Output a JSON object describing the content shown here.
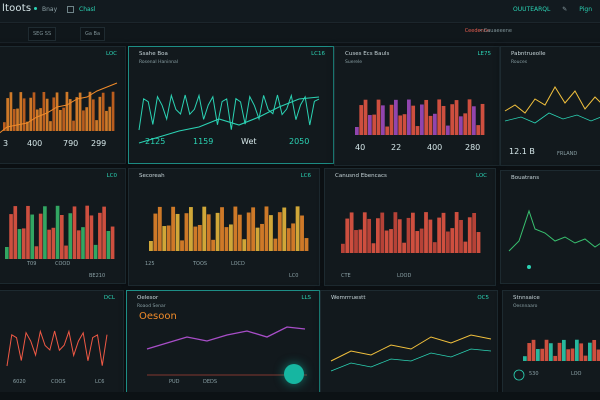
{
  "header": {
    "brand": "ltoots",
    "nav": [
      "Bnay",
      "Chasl"
    ],
    "right": [
      "OUUTEARQL",
      "Pign"
    ]
  },
  "subbar": {
    "chip1": "SEG  SS",
    "chip2": "Ga  Ba",
    "red": "Ceedenne",
    "right": "• Cauaeeene"
  },
  "panels": [
    {
      "title": "",
      "sub": "",
      "tag": "LOC",
      "metrics": [
        "3",
        "400",
        "790",
        "299"
      ]
    },
    {
      "title": "Ssahe Boa",
      "sub": "Rosenal Haninnal",
      "tag": "LC16",
      "metrics": [
        "2125",
        "1159",
        "Wet",
        "2050"
      ]
    },
    {
      "title": "Cuses Ecs Bauls",
      "sub": "Suerele",
      "tag": "LE75",
      "metrics": [
        "40",
        "22",
        "400",
        "280"
      ]
    },
    {
      "title": "Pabntrueolle",
      "sub": "Rouces",
      "tag": "",
      "metrics": [
        "12.1 B",
        "FRLAND"
      ]
    },
    {
      "title": "",
      "sub": "",
      "tag": "LC0",
      "metrics": [
        "T09",
        "COOD",
        "BE210"
      ]
    },
    {
      "title": "Secoreah",
      "sub": "",
      "tag": "LC6",
      "metrics": [
        "125",
        "TOOS",
        "LOCD",
        "LC0"
      ]
    },
    {
      "title": "Canusnd Ebencacs",
      "sub": "",
      "tag": "LOC",
      "metrics": [
        "CTE",
        "LOOD"
      ]
    },
    {
      "title": "Bouatrans",
      "sub": "",
      "tag": "",
      "metrics": []
    },
    {
      "title": "",
      "sub": "",
      "tag": "DCL",
      "metrics": [
        "6020",
        "COOS",
        "LC6"
      ]
    },
    {
      "title": "Oelesor",
      "sub": "Roaod Senar",
      "tag": "LLS",
      "metrics": [
        "Oesoon",
        "PUD",
        "DEDS"
      ]
    },
    {
      "title": "Wemrrruestt",
      "sub": "",
      "tag": "OC5",
      "metrics": []
    },
    {
      "title": "Stnnsaice",
      "sub": "Oesnnaaro",
      "tag": "",
      "metrics": [
        "530",
        "LOO"
      ]
    }
  ],
  "colors": {
    "orange": "#f08b2a",
    "teal": "#2bd3b4",
    "red": "#f05945",
    "yellow": "#f2c13d",
    "purple": "#a84ec8",
    "green": "#38c06f"
  }
}
